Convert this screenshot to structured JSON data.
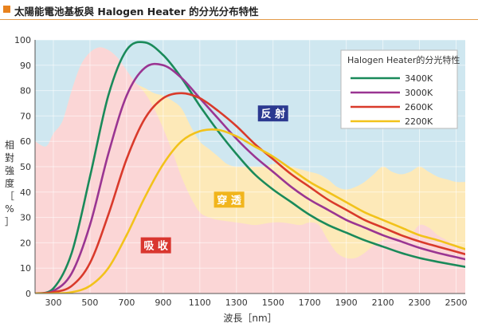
{
  "page": {
    "title": "太陽能電池基板與 Halogen Heater 的分光分布特性"
  },
  "chart_data": {
    "type": "line",
    "xlabel": "波長［nm］",
    "ylabel": [
      "相",
      "對",
      "強",
      "度",
      "［",
      "%",
      "］"
    ],
    "xlim": [
      200,
      2550
    ],
    "ylim": [
      0,
      100
    ],
    "x_ticks": [
      300,
      500,
      700,
      900,
      1100,
      1300,
      1500,
      1700,
      1900,
      2100,
      2300,
      2500
    ],
    "y_ticks": [
      0,
      10,
      20,
      30,
      40,
      50,
      60,
      70,
      80,
      90,
      100
    ],
    "grid": true,
    "legend": {
      "title": "Halogen Heater的分光特性",
      "placement": "top-right"
    },
    "series": [
      {
        "name": "3400K",
        "color": "#1a8a5a",
        "x": [
          200,
          300,
          400,
          500,
          600,
          700,
          800,
          900,
          1000,
          1100,
          1200,
          1300,
          1400,
          1500,
          1600,
          1700,
          1800,
          1900,
          2000,
          2100,
          2200,
          2300,
          2400,
          2550
        ],
        "y": [
          0,
          2,
          16,
          46,
          78,
          96,
          99,
          94,
          85,
          74,
          64,
          55,
          47,
          41,
          36,
          31,
          27,
          24,
          21,
          18.5,
          16,
          14,
          12.5,
          10.5
        ]
      },
      {
        "name": "3000K",
        "color": "#9a3592",
        "x": [
          200,
          300,
          400,
          500,
          600,
          700,
          800,
          900,
          1000,
          1100,
          1200,
          1300,
          1400,
          1500,
          1600,
          1700,
          1800,
          1900,
          2000,
          2100,
          2200,
          2300,
          2400,
          2550
        ],
        "y": [
          0,
          1,
          8,
          27,
          55,
          78,
          89,
          90,
          85,
          77,
          69,
          61,
          54,
          48,
          42,
          37,
          33,
          29,
          26,
          23,
          20.5,
          18,
          16,
          13.5
        ]
      },
      {
        "name": "2600K",
        "color": "#d93a2b",
        "x": [
          200,
          300,
          400,
          500,
          600,
          700,
          800,
          900,
          1000,
          1100,
          1200,
          1300,
          1400,
          1500,
          1600,
          1700,
          1800,
          1900,
          2000,
          2100,
          2200,
          2300,
          2400,
          2550
        ],
        "y": [
          0,
          0.5,
          3,
          12,
          31,
          53,
          69,
          77,
          79,
          77,
          72,
          66,
          59,
          53,
          47,
          42,
          37,
          33,
          29,
          26,
          23,
          20.5,
          18.5,
          15.5
        ]
      },
      {
        "name": "2200K",
        "color": "#f2c21a",
        "x": [
          200,
          300,
          400,
          500,
          600,
          700,
          800,
          900,
          1000,
          1100,
          1200,
          1300,
          1400,
          1500,
          1600,
          1700,
          1800,
          1900,
          2000,
          2100,
          2200,
          2300,
          2400,
          2550
        ],
        "y": [
          0,
          0,
          0.5,
          3,
          10,
          23,
          38,
          51,
          60,
          64,
          64.5,
          62,
          58,
          54,
          49,
          44,
          40,
          36,
          32,
          29,
          26,
          23,
          21,
          17.5
        ]
      }
    ],
    "regions": [
      {
        "label": "反 射",
        "color": "#cfe7f0",
        "label_bg": "#2b3990",
        "label_at": {
          "x": 1500,
          "y": 71
        },
        "boundary": {
          "x": [
            200,
            2550
          ],
          "y": [
            100,
            100
          ]
        }
      },
      {
        "label": "穿 透",
        "color": "#fde9b8",
        "label_bg": "#f1b51c",
        "label_at": {
          "x": 1260,
          "y": 37
        },
        "boundary": {
          "x": [
            200,
            260,
            300,
            350,
            400,
            450,
            500,
            550,
            600,
            650,
            700,
            750,
            800,
            850,
            900,
            950,
            1000,
            1050,
            1100,
            1150,
            1200,
            1250,
            1300,
            1350,
            1400,
            1450,
            1500,
            1550,
            1600,
            1650,
            1700,
            1750,
            1800,
            1850,
            1900,
            1950,
            2000,
            2050,
            2100,
            2150,
            2200,
            2250,
            2300,
            2350,
            2400,
            2450,
            2500,
            2550
          ],
          "y": [
            60,
            58,
            63,
            68,
            80,
            90,
            95,
            97,
            96,
            93,
            88,
            83,
            81,
            79,
            78,
            76,
            73,
            66,
            60,
            57,
            54,
            51,
            50,
            50,
            50,
            50,
            51,
            51,
            50,
            49,
            48,
            47,
            45,
            42,
            41,
            42,
            44,
            47,
            50,
            48,
            47,
            48,
            50,
            48,
            46,
            45,
            44,
            44
          ]
        }
      },
      {
        "label": "吸 收",
        "color": "#fbd6d6",
        "label_bg": "#d9362f",
        "label_at": {
          "x": 860,
          "y": 19
        },
        "boundary": {
          "x": [
            200,
            260,
            300,
            350,
            400,
            450,
            500,
            550,
            600,
            650,
            700,
            750,
            800,
            850,
            900,
            950,
            1000,
            1050,
            1100,
            1150,
            1200,
            1250,
            1300,
            1350,
            1400,
            1450,
            1500,
            1550,
            1600,
            1650,
            1700,
            1750,
            1800,
            1850,
            1900,
            1950,
            2000,
            2050,
            2100,
            2150,
            2200,
            2250,
            2300,
            2350,
            2400,
            2450,
            2500,
            2550
          ],
          "y": [
            60,
            58,
            63,
            68,
            80,
            90,
            95,
            97,
            96,
            93,
            88,
            83,
            79,
            73,
            65,
            56,
            46,
            38,
            32,
            30,
            29,
            28.5,
            28,
            27.5,
            27,
            27.5,
            28,
            28,
            27.5,
            27,
            28,
            27,
            21,
            16,
            14,
            14,
            16,
            19,
            21,
            22,
            22,
            23,
            27,
            26,
            23,
            21,
            19,
            18
          ]
        }
      }
    ]
  }
}
